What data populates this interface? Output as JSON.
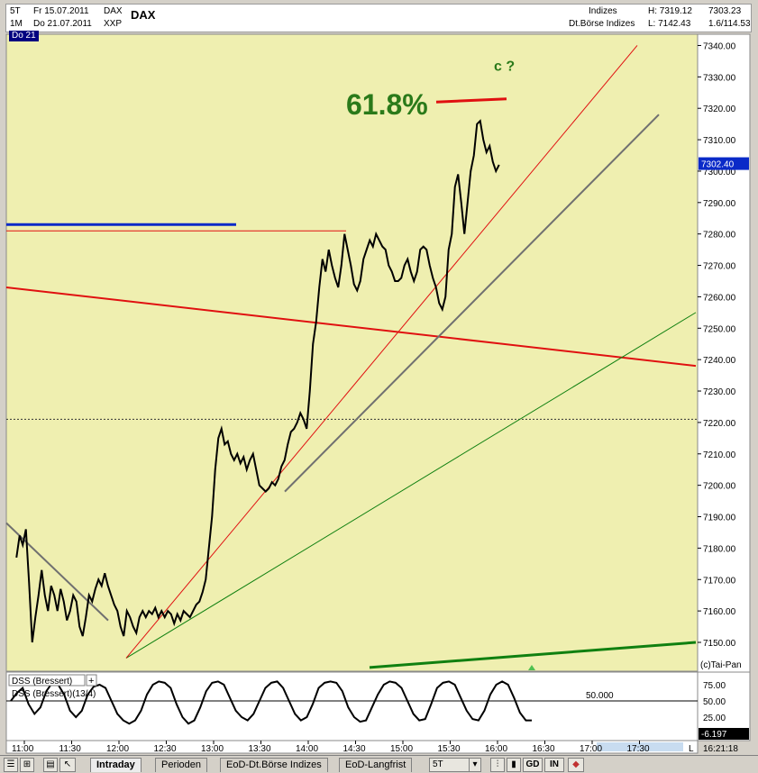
{
  "header": {
    "interval": "5T",
    "date_from": "Fr 15.07.2011",
    "symbol_code": "DAX",
    "symbol": "DAX",
    "range": "1M",
    "date_to": "Do 21.07.2011",
    "exchange": "XXP",
    "category": "Indizes",
    "category2": "Dt.Börse Indizes",
    "high": "H: 7319.12",
    "low": "L: 7142.43",
    "value1": "7303.23",
    "value2": "1.6/114.53",
    "day_marker": "Do 21"
  },
  "colors": {
    "chart_bg": "#efefb0",
    "price": "#000000",
    "red": "#e01010",
    "blue": "#0a2ac8",
    "green": "#108010",
    "gray": "#707070",
    "annot_green": "#2a7a1a"
  },
  "chart_data": {
    "type": "line",
    "title": "DAX",
    "ylim": [
      7140,
      7345
    ],
    "y_ticks": [
      "7340.00",
      "7330.00",
      "7320.00",
      "7310.00",
      "7300.00",
      "7290.00",
      "7280.00",
      "7270.00",
      "7260.00",
      "7250.00",
      "7240.00",
      "7230.00",
      "7220.00",
      "7210.00",
      "7200.00",
      "7190.00",
      "7180.00",
      "7170.00",
      "7160.00",
      "7150.00"
    ],
    "x_ticks": [
      "11:00",
      "11:30",
      "12:00",
      "12:30",
      "13:00",
      "13:30",
      "14:00",
      "14:30",
      "15:00",
      "15:30",
      "16:00",
      "16:30",
      "17:00",
      "17:30"
    ],
    "series": [
      {
        "values": [
          [
            "10:55",
            7177
          ],
          [
            "10:57",
            7184
          ],
          [
            "10:59",
            7181
          ],
          [
            "11:01",
            7186
          ],
          [
            "11:03",
            7169
          ],
          [
            "11:05",
            7150
          ],
          [
            "11:07",
            7158
          ],
          [
            "11:09",
            7165
          ],
          [
            "11:11",
            7173
          ],
          [
            "11:13",
            7165
          ],
          [
            "11:15",
            7160
          ],
          [
            "11:17",
            7168
          ],
          [
            "11:19",
            7165
          ],
          [
            "11:21",
            7160
          ],
          [
            "11:23",
            7167
          ],
          [
            "11:25",
            7163
          ],
          [
            "11:27",
            7157
          ],
          [
            "11:29",
            7160
          ],
          [
            "11:31",
            7165
          ],
          [
            "11:33",
            7163
          ],
          [
            "11:35",
            7155
          ],
          [
            "11:37",
            7152
          ],
          [
            "11:39",
            7158
          ],
          [
            "11:41",
            7165
          ],
          [
            "11:43",
            7163
          ],
          [
            "11:45",
            7167
          ],
          [
            "11:47",
            7170
          ],
          [
            "11:49",
            7168
          ],
          [
            "11:51",
            7172
          ],
          [
            "11:53",
            7168
          ],
          [
            "11:55",
            7165
          ],
          [
            "11:57",
            7162
          ],
          [
            "11:59",
            7160
          ],
          [
            "12:01",
            7155
          ],
          [
            "12:03",
            7152
          ],
          [
            "12:05",
            7160
          ],
          [
            "12:07",
            7158
          ],
          [
            "12:09",
            7155
          ],
          [
            "12:11",
            7153
          ],
          [
            "12:13",
            7158
          ],
          [
            "12:15",
            7160
          ],
          [
            "12:17",
            7158
          ],
          [
            "12:19",
            7160
          ],
          [
            "12:21",
            7159
          ],
          [
            "12:23",
            7161
          ],
          [
            "12:25",
            7158
          ],
          [
            "12:27",
            7160
          ],
          [
            "12:29",
            7158
          ],
          [
            "12:31",
            7160
          ],
          [
            "12:33",
            7159
          ],
          [
            "12:35",
            7156
          ],
          [
            "12:37",
            7159
          ],
          [
            "12:39",
            7157
          ],
          [
            "12:41",
            7160
          ],
          [
            "12:43",
            7159
          ],
          [
            "12:45",
            7158
          ],
          [
            "12:47",
            7160
          ],
          [
            "12:49",
            7162
          ],
          [
            "12:51",
            7163
          ],
          [
            "12:53",
            7166
          ],
          [
            "12:55",
            7170
          ],
          [
            "12:57",
            7180
          ],
          [
            "12:59",
            7190
          ],
          [
            "13:01",
            7205
          ],
          [
            "13:03",
            7215
          ],
          [
            "13:05",
            7218
          ],
          [
            "13:07",
            7213
          ],
          [
            "13:09",
            7214
          ],
          [
            "13:11",
            7210
          ],
          [
            "13:13",
            7208
          ],
          [
            "13:15",
            7210
          ],
          [
            "13:17",
            7207
          ],
          [
            "13:19",
            7209
          ],
          [
            "13:21",
            7205
          ],
          [
            "13:23",
            7208
          ],
          [
            "13:25",
            7210
          ],
          [
            "13:27",
            7205
          ],
          [
            "13:29",
            7200
          ],
          [
            "13:31",
            7199
          ],
          [
            "13:33",
            7198
          ],
          [
            "13:35",
            7199
          ],
          [
            "13:37",
            7201
          ],
          [
            "13:39",
            7200
          ],
          [
            "13:41",
            7202
          ],
          [
            "13:43",
            7206
          ],
          [
            "13:45",
            7208
          ],
          [
            "13:47",
            7213
          ],
          [
            "13:49",
            7217
          ],
          [
            "13:51",
            7218
          ],
          [
            "13:53",
            7220
          ],
          [
            "13:55",
            7223
          ],
          [
            "13:57",
            7221
          ],
          [
            "13:59",
            7218
          ],
          [
            "14:01",
            7230
          ],
          [
            "14:03",
            7245
          ],
          [
            "14:05",
            7252
          ],
          [
            "14:07",
            7263
          ],
          [
            "14:09",
            7272
          ],
          [
            "14:11",
            7268
          ],
          [
            "14:13",
            7275
          ],
          [
            "14:15",
            7270
          ],
          [
            "14:17",
            7266
          ],
          [
            "14:19",
            7263
          ],
          [
            "14:21",
            7270
          ],
          [
            "14:23",
            7280
          ],
          [
            "14:25",
            7275
          ],
          [
            "14:27",
            7270
          ],
          [
            "14:29",
            7264
          ],
          [
            "14:31",
            7262
          ],
          [
            "14:33",
            7265
          ],
          [
            "14:35",
            7272
          ],
          [
            "14:37",
            7275
          ],
          [
            "14:39",
            7278
          ],
          [
            "14:41",
            7276
          ],
          [
            "14:43",
            7280
          ],
          [
            "14:45",
            7278
          ],
          [
            "14:47",
            7276
          ],
          [
            "14:49",
            7275
          ],
          [
            "14:51",
            7270
          ],
          [
            "14:53",
            7268
          ],
          [
            "14:55",
            7265
          ],
          [
            "14:57",
            7265
          ],
          [
            "14:59",
            7266
          ],
          [
            "15:01",
            7270
          ],
          [
            "15:03",
            7272
          ],
          [
            "15:05",
            7268
          ],
          [
            "15:07",
            7265
          ],
          [
            "15:09",
            7268
          ],
          [
            "15:11",
            7275
          ],
          [
            "15:13",
            7276
          ],
          [
            "15:15",
            7275
          ],
          [
            "15:17",
            7270
          ],
          [
            "15:19",
            7266
          ],
          [
            "15:21",
            7263
          ],
          [
            "15:23",
            7258
          ],
          [
            "15:25",
            7256
          ],
          [
            "15:27",
            7260
          ],
          [
            "15:29",
            7275
          ],
          [
            "15:31",
            7280
          ],
          [
            "15:33",
            7295
          ],
          [
            "15:35",
            7299
          ],
          [
            "15:37",
            7290
          ],
          [
            "15:39",
            7280
          ],
          [
            "15:41",
            7290
          ],
          [
            "15:43",
            7300
          ],
          [
            "15:45",
            7305
          ],
          [
            "15:47",
            7315
          ],
          [
            "15:49",
            7316
          ],
          [
            "15:51",
            7310
          ],
          [
            "15:53",
            7306
          ],
          [
            "15:55",
            7308
          ],
          [
            "15:57",
            7303
          ],
          [
            "15:59",
            7300
          ],
          [
            "16:01",
            7302
          ]
        ]
      }
    ],
    "annotations": {
      "fib_label": "61.8%",
      "wave_label": "c ?",
      "last_price": "7302.40",
      "copyright": "(c)Tai-Pan"
    }
  },
  "dss": {
    "label1": "DSS (Bressert)",
    "label2": "DSS (Bressert)(13/4)",
    "level_label": "50.000",
    "y_ticks": [
      "75.00",
      "50.00",
      "25.00"
    ],
    "current_value": "-6.197",
    "values": [
      50,
      62,
      70,
      45,
      30,
      40,
      65,
      78,
      75,
      60,
      35,
      25,
      35,
      60,
      72,
      75,
      70,
      50,
      30,
      20,
      15,
      20,
      35,
      60,
      75,
      80,
      78,
      70,
      45,
      25,
      15,
      20,
      40,
      65,
      78,
      80,
      75,
      55,
      35,
      25,
      20,
      30,
      50,
      70,
      78,
      80,
      70,
      50,
      30,
      20,
      25,
      45,
      70,
      78,
      80,
      78,
      65,
      40,
      25,
      18,
      20,
      40,
      60,
      75,
      80,
      78,
      70,
      50,
      30,
      20,
      22,
      45,
      70,
      78,
      80,
      75,
      55,
      35,
      22,
      20,
      35,
      60,
      75,
      80,
      75,
      55,
      32,
      20,
      20
    ]
  },
  "time_axis_right": "16:21:18",
  "time_axis_marker": "L",
  "tabs": {
    "intraday": "Intraday",
    "perioden": "Perioden",
    "eod_indizes": "EoD-Dt.Börse Indizes",
    "eod_langfrist": "EoD-Langfrist",
    "interval": "5T",
    "gd": "GD",
    "in": "IN"
  }
}
